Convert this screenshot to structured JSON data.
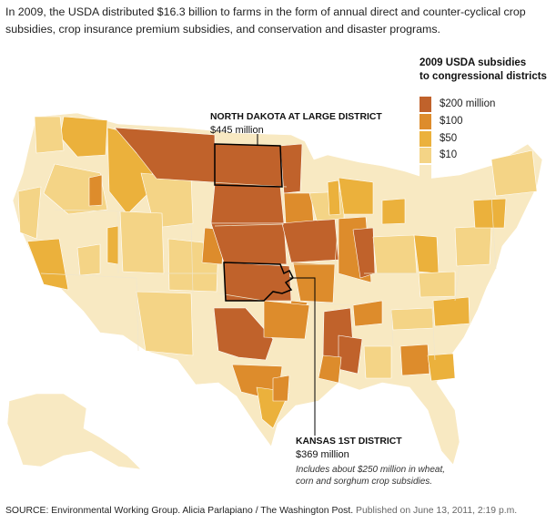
{
  "intro": "In 2009, the USDA distributed $16.3 billion to farms in the form of annual direct and counter-cyclical crop subsidies, crop insurance premium subsidies, and conservation and disaster programs.",
  "legend": {
    "title_line1": "2009 USDA subsidies",
    "title_line2": "to congressional districts",
    "items": [
      {
        "label": "$200 million",
        "color": "#c0622b"
      },
      {
        "label": "$100",
        "color": "#dd8c2c"
      },
      {
        "label": "$50",
        "color": "#ebb13c"
      },
      {
        "label": "$10",
        "color": "#f4d486"
      },
      {
        "label": "",
        "color": "#f8e9c2"
      }
    ]
  },
  "callouts": {
    "north_dakota": {
      "name": "NORTH DAKOTA AT LARGE DISTRICT",
      "amount": "$445 million"
    },
    "kansas": {
      "name": "KANSAS 1ST DISTRICT",
      "amount": "$369 million",
      "note_line1": "Includes about $250 million in wheat,",
      "note_line2": "corn and sorghum crop subsidies."
    }
  },
  "source": {
    "text": "SOURCE: Environmental Working Group. Alicia Parlapiano / The Washington Post.",
    "published": "Published on June 13, 2011, 2:19 p.m."
  }
}
